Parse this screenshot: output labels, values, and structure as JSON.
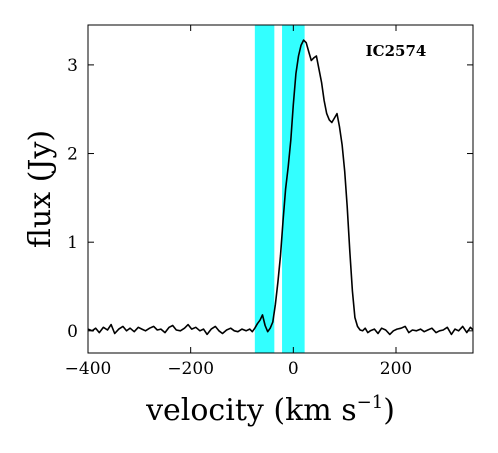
{
  "chart_data": {
    "type": "line",
    "title": "",
    "xlabel": "velocity (km s",
    "xlabel_exponent": "−1",
    "xlabel_close": ")",
    "ylabel": "flux (Jy)",
    "annotation": "IC2574",
    "xlim": [
      -400,
      350
    ],
    "ylim": [
      -0.25,
      3.45
    ],
    "x_ticks": [
      -400,
      -200,
      0,
      200
    ],
    "x_tick_labels": [
      "−400",
      "−200",
      "0",
      "200"
    ],
    "y_ticks": [
      0,
      1,
      2,
      3
    ],
    "y_tick_labels": [
      "0",
      "1",
      "2",
      "3"
    ],
    "grid": false,
    "highlight_color": "#33ffff",
    "line_color": "#000000",
    "highlight_bands": [
      {
        "x_start": -75,
        "x_end": -37
      },
      {
        "x_start": -22,
        "x_end": 22
      }
    ],
    "series": [
      {
        "x": [
          -400,
          -392,
          -385,
          -378,
          -370,
          -362,
          -355,
          -348,
          -340,
          -332,
          -325,
          -318,
          -310,
          -302,
          -295,
          -288,
          -280,
          -272,
          -265,
          -258,
          -250,
          -242,
          -235,
          -228,
          -220,
          -212,
          -205,
          -198,
          -190,
          -182,
          -175,
          -168,
          -160,
          -152,
          -145,
          -138,
          -130,
          -122,
          -115,
          -108,
          -100,
          -92,
          -85,
          -80,
          -75,
          -70,
          -65,
          -60,
          -55,
          -50,
          -45,
          -40,
          -35,
          -30,
          -25,
          -20,
          -15,
          -10,
          -5,
          0,
          5,
          10,
          15,
          20,
          25,
          30,
          35,
          40,
          45,
          50,
          55,
          60,
          65,
          70,
          75,
          80,
          85,
          90,
          95,
          100,
          105,
          110,
          115,
          120,
          125,
          130,
          135,
          140,
          145,
          150,
          158,
          165,
          172,
          180,
          188,
          195,
          202,
          210,
          218,
          225,
          232,
          240,
          248,
          255,
          262,
          270,
          278,
          285,
          292,
          300,
          308,
          315,
          322,
          330,
          338,
          345,
          350
        ],
        "values": [
          0.02,
          0.0,
          0.03,
          -0.02,
          0.04,
          0.01,
          0.07,
          -0.03,
          0.02,
          0.05,
          0.0,
          0.03,
          -0.01,
          0.04,
          0.02,
          0.0,
          0.03,
          0.05,
          0.01,
          0.02,
          -0.02,
          0.04,
          0.06,
          0.01,
          0.0,
          0.03,
          0.07,
          0.02,
          0.04,
          0.0,
          0.02,
          -0.04,
          0.02,
          0.05,
          0.0,
          -0.03,
          0.01,
          0.03,
          0.0,
          -0.01,
          0.02,
          0.0,
          0.02,
          -0.01,
          0.03,
          0.08,
          0.12,
          0.18,
          0.06,
          -0.01,
          0.03,
          0.1,
          0.3,
          0.55,
          0.85,
          1.25,
          1.6,
          1.85,
          2.15,
          2.55,
          2.9,
          3.1,
          3.22,
          3.28,
          3.25,
          3.15,
          3.05,
          3.08,
          3.1,
          2.95,
          2.8,
          2.6,
          2.45,
          2.38,
          2.35,
          2.4,
          2.45,
          2.3,
          2.1,
          1.8,
          1.4,
          0.9,
          0.45,
          0.15,
          0.05,
          0.01,
          0.0,
          0.03,
          -0.02,
          0.0,
          0.02,
          -0.03,
          0.03,
          0.01,
          -0.04,
          0.0,
          0.02,
          0.03,
          0.05,
          -0.02,
          0.01,
          0.0,
          0.02,
          -0.01,
          0.01,
          0.03,
          -0.02,
          0.0,
          0.01,
          0.04,
          -0.04,
          0.02,
          0.0,
          0.05,
          -0.02,
          0.04,
          0.01
        ]
      }
    ]
  }
}
